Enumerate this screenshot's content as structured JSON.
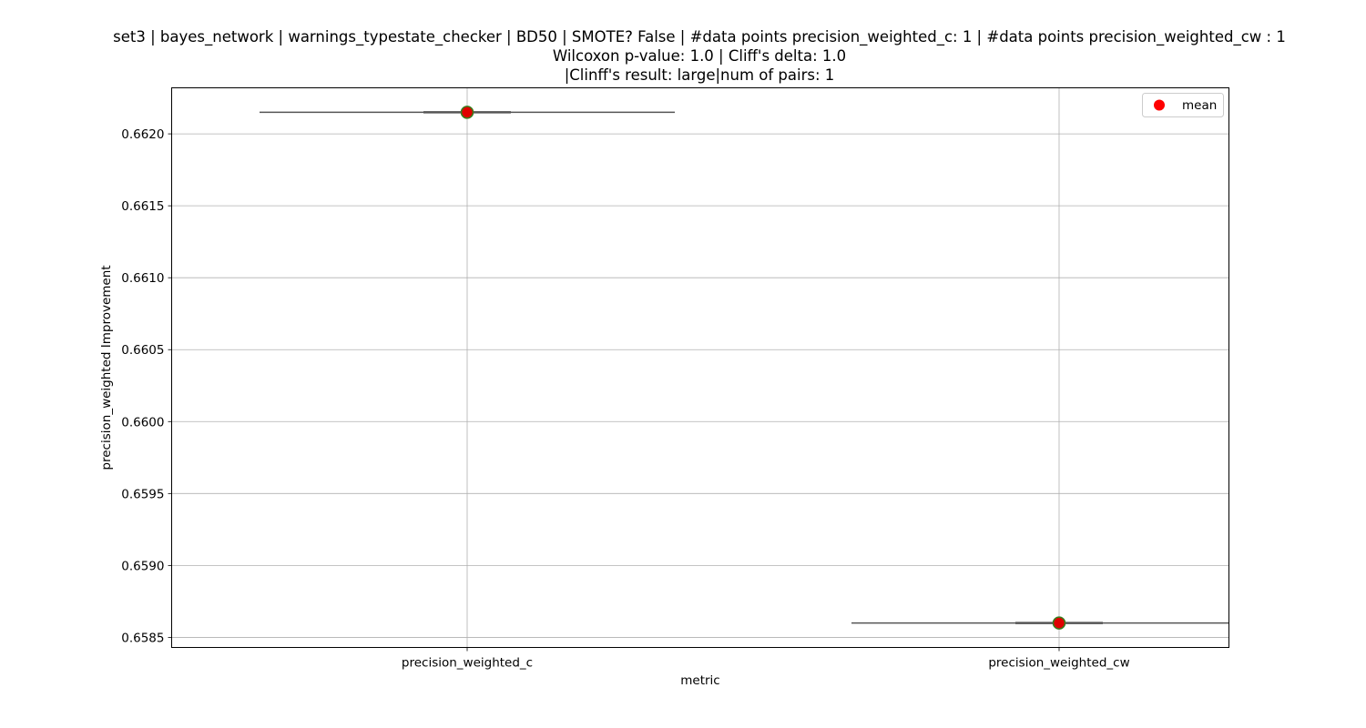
{
  "chart_data": {
    "type": "box",
    "title_lines": [
      "set3 | bayes_network | warnings_typestate_checker | BD50 | SMOTE? False | #data points precision_weighted_c: 1 | #data points precision_weighted_cw : 1",
      "Wilcoxon p-value: 1.0 | Cliff's delta: 1.0",
      "|Clinff's result: large|num of pairs: 1"
    ],
    "xlabel": "metric",
    "ylabel": "precision_weighted Improvement",
    "categories": [
      "precision_weighted_c",
      "precision_weighted_cw"
    ],
    "series": [
      {
        "category": "precision_weighted_c",
        "values": [
          0.66215
        ],
        "mean": 0.66215
      },
      {
        "category": "precision_weighted_cw",
        "values": [
          0.6586
        ],
        "mean": 0.6586
      }
    ],
    "ylim": [
      0.65843,
      0.66232
    ],
    "yticks": [
      0.6585,
      0.659,
      0.6595,
      0.66,
      0.6605,
      0.661,
      0.6615,
      0.662
    ],
    "ytick_labels": [
      "0.6585",
      "0.6590",
      "0.6595",
      "0.6600",
      "0.6605",
      "0.6610",
      "0.6615",
      "0.6620"
    ],
    "grid": true,
    "legend": {
      "position": "top-right",
      "entries": [
        {
          "label": "mean",
          "color": "#ff0000"
        }
      ]
    },
    "colors": {
      "mean_marker_fill": "#e00000",
      "mean_marker_edge": "#3a7d1e",
      "box_line": "#555555",
      "grid": "#b0b0b0"
    }
  }
}
